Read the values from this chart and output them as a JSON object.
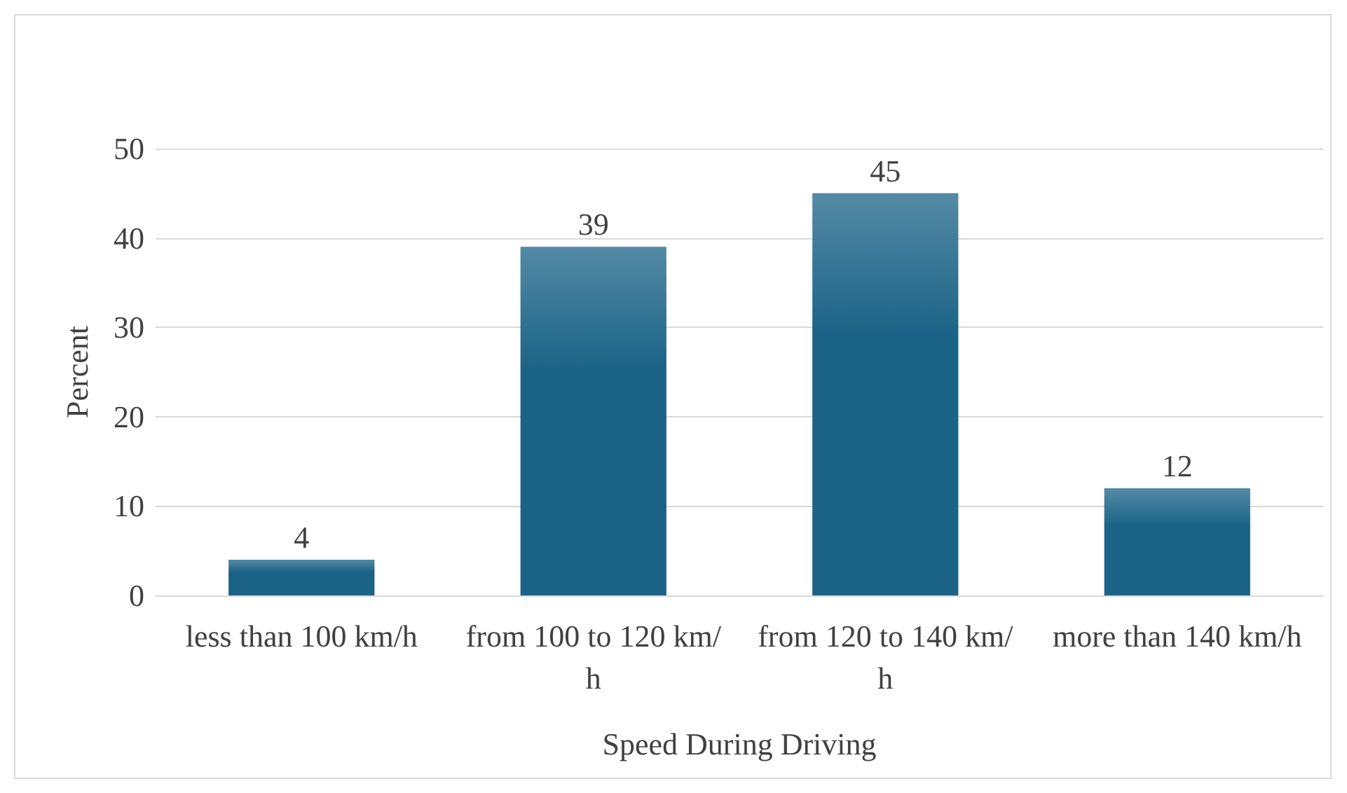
{
  "chart_data": {
    "type": "bar",
    "xlabel": "Speed During Driving",
    "ylabel": "Percent",
    "categories": [
      "less than 100 km/h",
      "from 100 to 120 km/h",
      "from 120 to 140 km/h",
      "more than 140 km/h"
    ],
    "values": [
      4,
      39,
      45,
      12
    ],
    "color": "#1b6387",
    "ylim": [
      0,
      50
    ],
    "yticks": [
      0,
      10,
      20,
      30,
      40,
      50
    ],
    "grid": "y",
    "data_labels": true
  }
}
